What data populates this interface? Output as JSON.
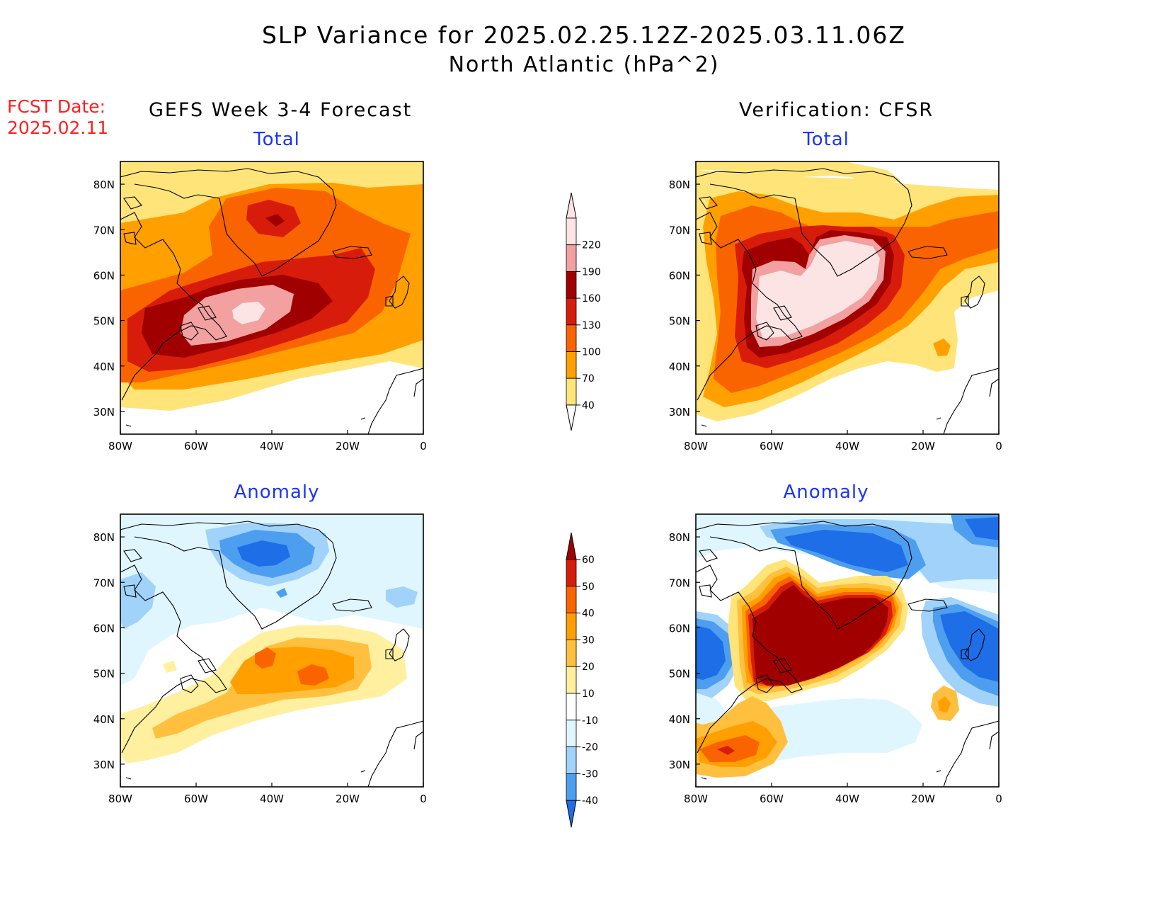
{
  "title": {
    "line1": "SLP Variance for 2025.02.25.12Z-2025.03.11.06Z",
    "line2": "North Atlantic (hPa^2)"
  },
  "fcst": {
    "line1": "FCST Date:",
    "line2": "2025.02.11"
  },
  "columns": {
    "left": "GEFS Week 3-4 Forecast",
    "right": "Verification: CFSR"
  },
  "panels": {
    "total_label": "Total",
    "anomaly_label": "Anomaly"
  },
  "axes": {
    "lat_labels": [
      "80N",
      "70N",
      "60N",
      "50N",
      "40N",
      "30N"
    ],
    "lon_labels": [
      "80W",
      "60W",
      "40W",
      "20W",
      "0"
    ]
  },
  "colorbar_total": {
    "levels": [
      "220",
      "190",
      "160",
      "130",
      "100",
      "70",
      "40"
    ],
    "colors": [
      "#fde4e4",
      "#f2a0a0",
      "#a00000",
      "#d81c0c",
      "#fa6400",
      "#ffa000",
      "#ffe47a"
    ]
  },
  "colorbar_anomaly": {
    "levels": [
      "60",
      "50",
      "40",
      "30",
      "20",
      "10",
      "-10",
      "-20",
      "-30",
      "-40"
    ],
    "colors": [
      "#a00000",
      "#d81c0c",
      "#fa6400",
      "#ffa000",
      "#ffc040",
      "#fff0a0",
      "#ffffff",
      "#e0f6ff",
      "#a0d2fa",
      "#4e9ef0",
      "#1e6ee8"
    ]
  }
}
